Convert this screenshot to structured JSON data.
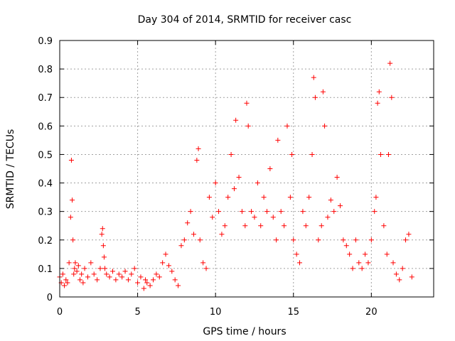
{
  "chart_data": {
    "type": "scatter",
    "title": "Day 304 of 2014, SRMTID for receiver casc",
    "xlabel": "GPS time / hours",
    "ylabel": "SRMTID / TECUs",
    "xlim": [
      0,
      24
    ],
    "ylim": [
      0,
      0.9
    ],
    "xticks": [
      0,
      5,
      10,
      15,
      20
    ],
    "yticks": [
      0,
      0.1,
      0.2,
      0.3,
      0.4,
      0.5,
      0.6,
      0.7,
      0.8,
      0.9
    ],
    "xtick_labels": [
      "0",
      "5",
      "10",
      "15",
      "20"
    ],
    "ytick_labels": [
      "0",
      "0.1",
      "0.2",
      "0.3",
      "0.4",
      "0.5",
      "0.6",
      "0.7",
      "0.8",
      "0.9"
    ],
    "grid": true,
    "marker": "+",
    "color": "#ff0000",
    "series": [
      {
        "name": "SRMTID",
        "x": [
          0.0,
          0.1,
          0.2,
          0.3,
          0.4,
          0.5,
          0.6,
          0.7,
          0.75,
          0.8,
          0.85,
          0.9,
          0.95,
          1.0,
          1.1,
          1.2,
          1.3,
          1.4,
          1.5,
          1.6,
          1.8,
          2.0,
          2.2,
          2.4,
          2.6,
          2.7,
          2.75,
          2.8,
          2.85,
          2.9,
          3.0,
          3.2,
          3.4,
          3.6,
          3.8,
          4.0,
          4.2,
          4.4,
          4.6,
          4.8,
          5.0,
          5.2,
          5.4,
          5.5,
          5.6,
          5.8,
          6.0,
          6.2,
          6.4,
          6.6,
          6.8,
          7.0,
          7.2,
          7.4,
          7.6,
          7.8,
          8.0,
          8.2,
          8.4,
          8.6,
          8.8,
          8.9,
          9.0,
          9.2,
          9.4,
          9.6,
          9.8,
          10.0,
          10.2,
          10.4,
          10.6,
          10.8,
          11.0,
          11.2,
          11.3,
          11.5,
          11.7,
          11.9,
          12.0,
          12.1,
          12.3,
          12.5,
          12.7,
          12.9,
          13.1,
          13.3,
          13.5,
          13.7,
          13.9,
          14.0,
          14.2,
          14.4,
          14.6,
          14.8,
          14.9,
          15.0,
          15.2,
          15.4,
          15.6,
          15.8,
          16.0,
          16.2,
          16.3,
          16.4,
          16.6,
          16.8,
          16.9,
          17.0,
          17.2,
          17.4,
          17.6,
          17.8,
          18.0,
          18.2,
          18.4,
          18.6,
          18.8,
          19.0,
          19.2,
          19.4,
          19.6,
          19.8,
          20.0,
          20.2,
          20.3,
          20.4,
          20.5,
          20.6,
          20.8,
          21.0,
          21.1,
          21.2,
          21.3,
          21.4,
          21.6,
          21.8,
          22.0,
          22.2,
          22.4,
          22.6
        ],
        "y": [
          0.07,
          0.05,
          0.08,
          0.04,
          0.06,
          0.05,
          0.12,
          0.28,
          0.48,
          0.34,
          0.2,
          0.08,
          0.1,
          0.12,
          0.09,
          0.11,
          0.06,
          0.08,
          0.05,
          0.1,
          0.07,
          0.12,
          0.08,
          0.06,
          0.1,
          0.22,
          0.24,
          0.18,
          0.14,
          0.1,
          0.08,
          0.07,
          0.09,
          0.06,
          0.08,
          0.07,
          0.09,
          0.06,
          0.08,
          0.1,
          0.05,
          0.07,
          0.03,
          0.06,
          0.05,
          0.04,
          0.06,
          0.08,
          0.07,
          0.12,
          0.15,
          0.11,
          0.09,
          0.06,
          0.04,
          0.18,
          0.2,
          0.26,
          0.3,
          0.22,
          0.48,
          0.52,
          0.2,
          0.12,
          0.1,
          0.35,
          0.28,
          0.4,
          0.3,
          0.22,
          0.25,
          0.35,
          0.5,
          0.38,
          0.62,
          0.42,
          0.3,
          0.25,
          0.68,
          0.6,
          0.3,
          0.28,
          0.4,
          0.25,
          0.35,
          0.3,
          0.45,
          0.28,
          0.2,
          0.55,
          0.3,
          0.25,
          0.6,
          0.35,
          0.5,
          0.2,
          0.15,
          0.12,
          0.3,
          0.25,
          0.35,
          0.5,
          0.77,
          0.7,
          0.2,
          0.25,
          0.72,
          0.6,
          0.28,
          0.34,
          0.3,
          0.42,
          0.32,
          0.2,
          0.18,
          0.15,
          0.1,
          0.2,
          0.12,
          0.1,
          0.15,
          0.12,
          0.2,
          0.3,
          0.35,
          0.68,
          0.72,
          0.5,
          0.25,
          0.15,
          0.5,
          0.82,
          0.7,
          0.12,
          0.08,
          0.06,
          0.1,
          0.2,
          0.22,
          0.07
        ]
      }
    ]
  }
}
